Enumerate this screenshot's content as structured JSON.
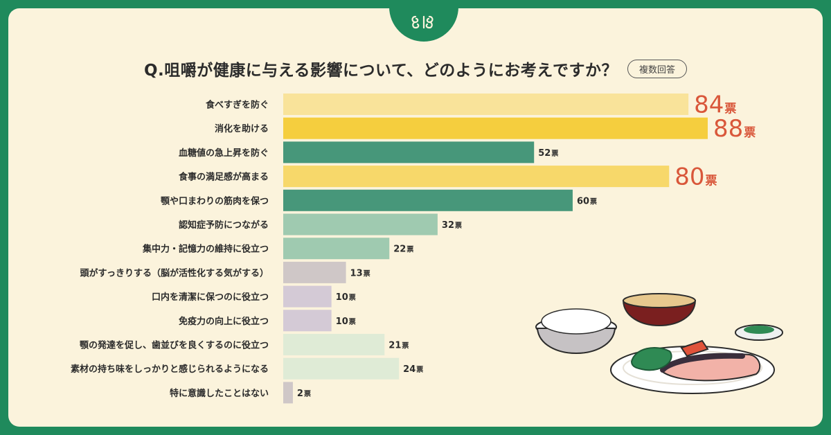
{
  "title": "Q.咀嚼が健康に与える影響について、どのようにお考えですか？",
  "badge": "複数回答",
  "unit": "票",
  "colors": {
    "background": "#1f8a5c",
    "card": "#fbf3dc",
    "title_text": "#2b2b2b",
    "highlight_value": "#d9573a",
    "yellow_light": "#f9e39a",
    "yellow_mid": "#f7d86a",
    "yellow_strong": "#f5ce3e",
    "green_strong": "#47977a",
    "green_mid": "#9fcab0",
    "green_light": "#dfebd6",
    "gray": "#cfc7c7",
    "lavender": "#d4cad6"
  },
  "chart_data": {
    "type": "bar",
    "orientation": "horizontal",
    "categories": [
      "食べすぎを防ぐ",
      "消化を助ける",
      "血糖値の急上昇を防ぐ",
      "食事の満足感が高まる",
      "顎や口まわりの筋肉を保つ",
      "認知症予防につながる",
      "集中力・記憶力の維持に役立つ",
      "頭がすっきりする（脳が活性化する気がする）",
      "口内を清潔に保つのに役立つ",
      "免疫力の向上に役立つ",
      "顎の発達を促し、歯並びを良くするのに役立つ",
      "素材の持ち味をしっかりと感じられるようになる",
      "特に意識したことはない"
    ],
    "values": [
      84,
      88,
      52,
      80,
      60,
      32,
      22,
      13,
      10,
      10,
      21,
      24,
      2
    ],
    "value_labels": [
      "84",
      "88",
      "52",
      "80",
      "60",
      "32",
      "22",
      "13",
      "10",
      "10",
      "21",
      "24",
      "2"
    ],
    "bar_colors": [
      "#f9e39a",
      "#f5ce3e",
      "#47977a",
      "#f7d86a",
      "#47977a",
      "#9fcab0",
      "#9fcab0",
      "#cfc7c7",
      "#d4cad6",
      "#d4cad6",
      "#dfebd6",
      "#dfebd6",
      "#cfc7c7"
    ],
    "highlighted": [
      true,
      true,
      false,
      true,
      false,
      false,
      false,
      false,
      false,
      false,
      false,
      false,
      false
    ],
    "xlim": [
      0,
      88
    ],
    "grid": false,
    "legend": "none"
  }
}
